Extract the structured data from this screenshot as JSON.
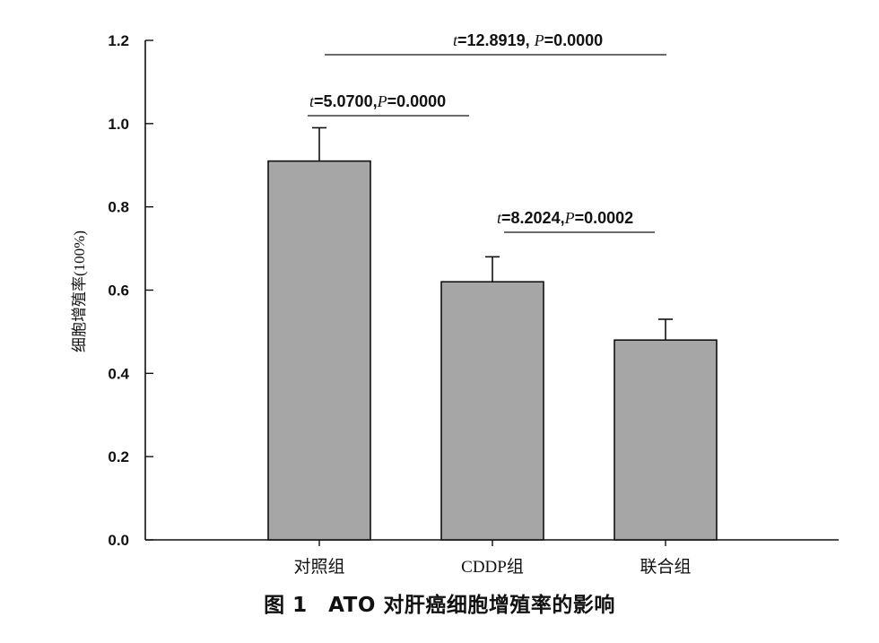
{
  "chart_data": {
    "type": "bar",
    "categories": [
      "对照组",
      "CDDP组",
      "联合组"
    ],
    "values": [
      0.91,
      0.62,
      0.48
    ],
    "errors": [
      0.08,
      0.06,
      0.05
    ],
    "ylabel": "细胞增殖率(100%)",
    "xlabel": "",
    "ylim": [
      0,
      1.2
    ],
    "yticks": [
      "0.0",
      "0.2",
      "0.4",
      "0.6",
      "0.8",
      "1.0",
      "1.2"
    ],
    "bar_color": "#a6a6a6",
    "grid": false,
    "comparisons": [
      {
        "from": 0,
        "to": 1,
        "t_symbol": "t",
        "t_text": "=5.0700,",
        "p_symbol": "P",
        "p_text": "=0.0000"
      },
      {
        "from": 1,
        "to": 2,
        "t_symbol": "t",
        "t_text": "=8.2024,",
        "p_symbol": "P",
        "p_text": "=0.0002"
      },
      {
        "from": 0,
        "to": 2,
        "t_symbol": "t",
        "t_text": "=12.8919, ",
        "p_symbol": "P",
        "p_text": "=0.0000"
      }
    ]
  },
  "caption": "图 1　ATO 对肝癌细胞增殖率的影响"
}
